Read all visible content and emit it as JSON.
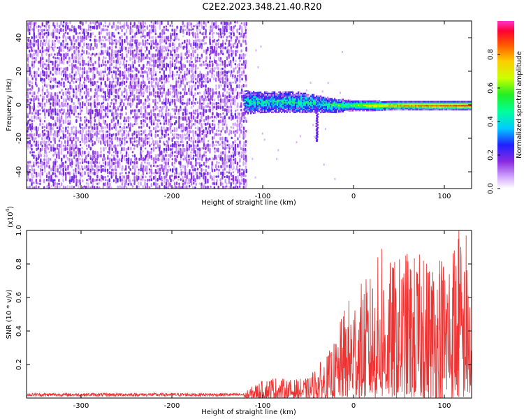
{
  "title": "C2E2.2023.348.21.40.R20",
  "chart_data": [
    {
      "type": "heatmap",
      "title": "",
      "xlabel": "Height of straight line (km)",
      "ylabel": "Frequency (Hz)",
      "xlim": [
        -360,
        130
      ],
      "ylim": [
        -50,
        50
      ],
      "xticks": [
        -300,
        -200,
        -100,
        0,
        100
      ],
      "yticks": [
        -40,
        -20,
        0,
        20,
        40
      ],
      "noise_region_x": [
        -360,
        -118
      ],
      "signal_band": [
        {
          "x": -120,
          "center_hz": 2,
          "half_width_hz": 7,
          "amplitude": 0.35
        },
        {
          "x": -100,
          "center_hz": 2,
          "half_width_hz": 6,
          "amplitude": 0.35
        },
        {
          "x": -80,
          "center_hz": 2,
          "half_width_hz": 6,
          "amplitude": 0.4
        },
        {
          "x": -60,
          "center_hz": 2,
          "half_width_hz": 6,
          "amplitude": 0.4
        },
        {
          "x": -40,
          "center_hz": 1,
          "half_width_hz": 5,
          "amplitude": 0.35
        },
        {
          "x": -20,
          "center_hz": 0,
          "half_width_hz": 4,
          "amplitude": 0.45
        },
        {
          "x": 0,
          "center_hz": 0,
          "half_width_hz": 3,
          "amplitude": 0.6
        },
        {
          "x": 20,
          "center_hz": 0,
          "half_width_hz": 3,
          "amplitude": 0.75
        },
        {
          "x": 40,
          "center_hz": 0,
          "half_width_hz": 2.5,
          "amplitude": 0.8
        },
        {
          "x": 60,
          "center_hz": 0,
          "half_width_hz": 2.5,
          "amplitude": 0.85
        },
        {
          "x": 80,
          "center_hz": 0,
          "half_width_hz": 2.5,
          "amplitude": 0.9
        },
        {
          "x": 100,
          "center_hz": 0,
          "half_width_hz": 2.5,
          "amplitude": 0.92
        },
        {
          "x": 130,
          "center_hz": 0,
          "half_width_hz": 2.5,
          "amplitude": 0.95
        }
      ],
      "colorbar": {
        "label": "Normalized spectral amplitude",
        "range": [
          0,
          1
        ],
        "ticks": [
          "0.0",
          "0.2",
          "0.4",
          "0.6",
          "0.8"
        ]
      }
    },
    {
      "type": "line",
      "title": "",
      "xlabel": "Height of straight line (km)",
      "ylabel": "SNR (10 * v/v)",
      "multiplier_label": "(x10",
      "multiplier_exponent": "4",
      "xlim": [
        -360,
        130
      ],
      "ylim": [
        0,
        1.0
      ],
      "xticks": [
        -300,
        -200,
        -100,
        0,
        100
      ],
      "yticks": [
        "0.2",
        "0.4",
        "0.6",
        "0.8",
        "1.0"
      ],
      "series": [
        {
          "name": "SNR",
          "color": "#ee3333",
          "envelope_x": [
            -360,
            -120,
            -110,
            -90,
            -70,
            -50,
            -40,
            -30,
            -20,
            -10,
            0,
            20,
            30,
            40,
            60,
            80,
            100,
            115,
            120,
            130
          ],
          "envelope_max": [
            0.03,
            0.03,
            0.08,
            0.13,
            0.11,
            0.12,
            0.2,
            0.25,
            0.35,
            0.55,
            0.65,
            0.75,
            0.9,
            0.82,
            0.88,
            0.85,
            0.9,
            1.0,
            0.95,
            0.65
          ],
          "peaks": [
            {
              "x": 31,
              "y": 0.89
            },
            {
              "x": 59,
              "y": 0.86
            },
            {
              "x": 77,
              "y": 0.82
            },
            {
              "x": 95,
              "y": 0.82
            },
            {
              "x": 111,
              "y": 0.88
            },
            {
              "x": 116,
              "y": 1.0
            },
            {
              "x": 124,
              "y": 0.97
            }
          ]
        }
      ]
    }
  ]
}
